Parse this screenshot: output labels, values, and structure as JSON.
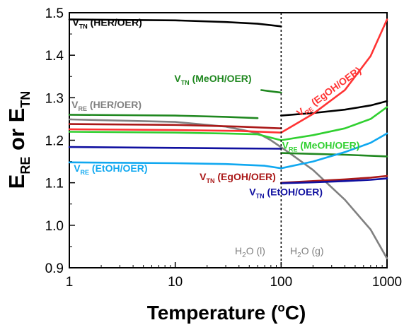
{
  "chart_data": {
    "type": "line",
    "title": "",
    "xscale": "log",
    "xlim": [
      1,
      1000
    ],
    "ylim": [
      0.9,
      1.5
    ],
    "xticks": [
      "1",
      "10",
      "100",
      "1000"
    ],
    "yticks": [
      "0.9",
      "1.0",
      "1.1",
      "1.2",
      "1.3",
      "1.4",
      "1.5"
    ],
    "xlabel": {
      "main": "Temperature (",
      "sup": "o",
      "end": "C)"
    },
    "ylabel": {
      "E1": "E",
      "s1": "RE",
      "mid": " or ",
      "E2": "E",
      "s2": "TN"
    },
    "divider_x": 100,
    "phase_labels": [
      {
        "main": "H",
        "sub": "2",
        "rest": "O (l)"
      },
      {
        "main": "H",
        "sub": "2",
        "rest": "O (g)"
      }
    ],
    "series": [
      {
        "color": "#000000",
        "points": [
          [
            1,
            1.484
          ],
          [
            10,
            1.482
          ],
          [
            30,
            1.478
          ],
          [
            60,
            1.474
          ],
          [
            100,
            1.468
          ]
        ]
      },
      {
        "color": "#000000",
        "points": [
          [
            100,
            1.258
          ],
          [
            200,
            1.264
          ],
          [
            400,
            1.272
          ],
          [
            700,
            1.282
          ],
          [
            1000,
            1.292
          ]
        ]
      },
      {
        "color": "#808080",
        "points": [
          [
            1,
            1.249
          ],
          [
            10,
            1.243
          ],
          [
            30,
            1.232
          ],
          [
            60,
            1.217
          ],
          [
            80,
            1.2
          ],
          [
            120,
            1.17
          ],
          [
            200,
            1.13
          ],
          [
            400,
            1.06
          ],
          [
            700,
            0.99
          ],
          [
            1000,
            0.922
          ]
        ]
      },
      {
        "color": "#208820",
        "points": [
          [
            1,
            1.26
          ],
          [
            10,
            1.258
          ],
          [
            30,
            1.255
          ],
          [
            60,
            1.252
          ]
        ]
      },
      {
        "color": "#208820",
        "points": [
          [
            65,
            1.318
          ],
          [
            100,
            1.312
          ]
        ]
      },
      {
        "color": "#208820",
        "points": [
          [
            100,
            1.17
          ],
          [
            200,
            1.168
          ],
          [
            400,
            1.166
          ],
          [
            1000,
            1.162
          ]
        ]
      },
      {
        "color": "#30d030",
        "points": [
          [
            1,
            1.22
          ],
          [
            10,
            1.218
          ],
          [
            30,
            1.216
          ],
          [
            60,
            1.214
          ],
          [
            100,
            1.2
          ],
          [
            200,
            1.212
          ],
          [
            400,
            1.228
          ],
          [
            700,
            1.25
          ],
          [
            1000,
            1.278
          ]
        ]
      },
      {
        "color": "#ff3333",
        "points": [
          [
            1,
            1.226
          ],
          [
            10,
            1.224
          ],
          [
            40,
            1.222
          ],
          [
            100,
            1.218
          ],
          [
            200,
            1.262
          ],
          [
            400,
            1.318
          ],
          [
            700,
            1.398
          ],
          [
            1000,
            1.484
          ]
        ]
      },
      {
        "color": "#aa1818",
        "points": [
          [
            1,
            1.238
          ],
          [
            10,
            1.236
          ],
          [
            40,
            1.232
          ],
          [
            100,
            1.228
          ]
        ]
      },
      {
        "color": "#aa1818",
        "points": [
          [
            100,
            1.1
          ],
          [
            200,
            1.104
          ],
          [
            400,
            1.108
          ],
          [
            700,
            1.112
          ],
          [
            1000,
            1.116
          ]
        ]
      },
      {
        "color": "#1010a0",
        "points": [
          [
            1,
            1.184
          ],
          [
            10,
            1.182
          ],
          [
            30,
            1.181
          ],
          [
            100,
            1.18
          ]
        ]
      },
      {
        "color": "#1010a0",
        "points": [
          [
            100,
            1.099
          ],
          [
            200,
            1.101
          ],
          [
            400,
            1.104
          ],
          [
            700,
            1.107
          ],
          [
            1000,
            1.11
          ]
        ]
      },
      {
        "color": "#10a8f0",
        "points": [
          [
            1,
            1.148
          ],
          [
            10,
            1.146
          ],
          [
            30,
            1.144
          ],
          [
            70,
            1.14
          ],
          [
            100,
            1.134
          ],
          [
            200,
            1.15
          ],
          [
            400,
            1.172
          ],
          [
            700,
            1.194
          ],
          [
            1000,
            1.216
          ]
        ]
      }
    ],
    "annotations": [
      {
        "prefix": "V",
        "sub": "TN",
        "text": " (HER/OER)",
        "color": "#000000",
        "x": 1.07,
        "y": 1.469,
        "rot": 0
      },
      {
        "prefix": "V",
        "sub": "TN",
        "text": " (MeOH/OER)",
        "color": "#208820",
        "x": 9.8,
        "y": 1.337,
        "rot": 0
      },
      {
        "prefix": "V",
        "sub": "RE",
        "text": " (HER/OER)",
        "color": "#808080",
        "x": 1.05,
        "y": 1.276,
        "rot": 0
      },
      {
        "prefix": "V",
        "sub": "RE",
        "text": " (MeOH/OER)",
        "color": "#30d030",
        "x": 102,
        "y": 1.18,
        "rot": 0
      },
      {
        "prefix": "V",
        "sub": "RE",
        "text": " (EtOH/OER)",
        "color": "#10a8f0",
        "x": 1.1,
        "y": 1.126,
        "rot": 0
      },
      {
        "prefix": "V",
        "sub": "TN",
        "text": " (EgOH/OER)",
        "color": "#aa1818",
        "x": 17,
        "y": 1.106,
        "rot": 0
      },
      {
        "prefix": "V",
        "sub": "TN",
        "text": " (EtOH/OER)",
        "color": "#1010a0",
        "x": 50,
        "y": 1.07,
        "rot": 0
      },
      {
        "prefix": "V",
        "sub": "RE",
        "text": " (EgOH/OER)",
        "color": "#ff3333",
        "x": 150,
        "y": 1.255,
        "rot": -36
      }
    ]
  }
}
